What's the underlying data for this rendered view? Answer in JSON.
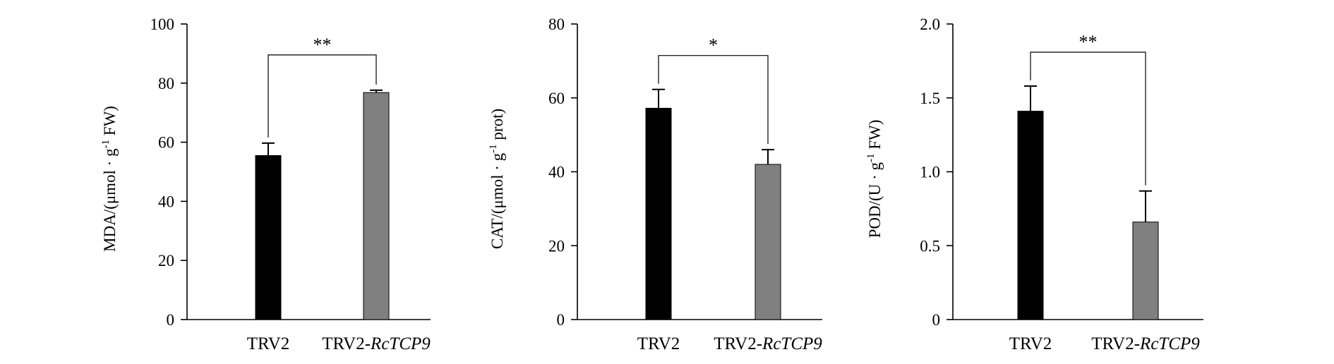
{
  "chart_data": [
    {
      "type": "bar",
      "categories": [
        {
          "prefix": "TRV2",
          "italic": ""
        },
        {
          "prefix": "TRV2-",
          "italic": "RcTCP9"
        }
      ],
      "values": [
        55.5,
        76.8
      ],
      "errors": [
        4.2,
        0.8
      ],
      "colors": [
        "#000000",
        "#808080"
      ],
      "ylabel": {
        "main": "MDA/(μmol · g",
        "sup": "-1",
        "tail": " FW)"
      },
      "ylim": [
        0,
        100
      ],
      "yticks": [
        "0",
        "20",
        "40",
        "60",
        "80",
        "100"
      ],
      "significance": "**"
    },
    {
      "type": "bar",
      "categories": [
        {
          "prefix": "TRV2",
          "italic": ""
        },
        {
          "prefix": "TRV2-",
          "italic": "RcTCP9"
        }
      ],
      "values": [
        57.2,
        42.0
      ],
      "errors": [
        5.1,
        4.0
      ],
      "colors": [
        "#000000",
        "#808080"
      ],
      "ylabel": {
        "main": "CAT/(μmol · g",
        "sup": "-1",
        "tail": " prot)"
      },
      "ylim": [
        0,
        80
      ],
      "yticks": [
        "0",
        "20",
        "40",
        "60",
        "80"
      ],
      "significance": "*"
    },
    {
      "type": "bar",
      "categories": [
        {
          "prefix": "TRV2",
          "italic": ""
        },
        {
          "prefix": "TRV2-",
          "italic": "RcTCP9"
        }
      ],
      "values": [
        1.41,
        0.66
      ],
      "errors": [
        0.17,
        0.21
      ],
      "colors": [
        "#000000",
        "#808080"
      ],
      "ylabel": {
        "main": "POD/(U · g",
        "sup": "-1",
        "tail": " FW)"
      },
      "ylim": [
        0,
        2.0
      ],
      "yticks": [
        "0",
        "0.5",
        "1.0",
        "1.5",
        "2.0"
      ],
      "significance": "**"
    }
  ]
}
